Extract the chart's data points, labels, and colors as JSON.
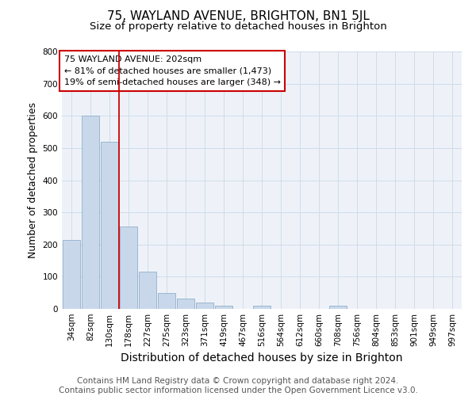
{
  "title": "75, WAYLAND AVENUE, BRIGHTON, BN1 5JL",
  "subtitle": "Size of property relative to detached houses in Brighton",
  "xlabel": "Distribution of detached houses by size in Brighton",
  "ylabel": "Number of detached properties",
  "categories": [
    "34sqm",
    "82sqm",
    "130sqm",
    "178sqm",
    "227sqm",
    "275sqm",
    "323sqm",
    "371sqm",
    "419sqm",
    "467sqm",
    "516sqm",
    "564sqm",
    "612sqm",
    "660sqm",
    "708sqm",
    "756sqm",
    "804sqm",
    "853sqm",
    "901sqm",
    "949sqm",
    "997sqm"
  ],
  "values": [
    215,
    600,
    520,
    255,
    115,
    50,
    33,
    20,
    10,
    0,
    10,
    0,
    0,
    0,
    10,
    0,
    0,
    0,
    0,
    0,
    0
  ],
  "bar_color": "#c8d8ea",
  "bar_edge_color": "#90b0cc",
  "grid_color": "#d0dcea",
  "background_color": "#eef2f8",
  "red_line_x": 2.5,
  "annotation_lines": [
    "75 WAYLAND AVENUE: 202sqm",
    "← 81% of detached houses are smaller (1,473)",
    "19% of semi-detached houses are larger (348) →"
  ],
  "annotation_box_color": "#cc0000",
  "ylim": [
    0,
    800
  ],
  "yticks": [
    0,
    100,
    200,
    300,
    400,
    500,
    600,
    700,
    800
  ],
  "footer_line1": "Contains HM Land Registry data © Crown copyright and database right 2024.",
  "footer_line2": "Contains public sector information licensed under the Open Government Licence v3.0.",
  "title_fontsize": 11,
  "subtitle_fontsize": 9.5,
  "xlabel_fontsize": 10,
  "ylabel_fontsize": 9,
  "tick_fontsize": 7.5,
  "footer_fontsize": 7.5,
  "ann_fontsize": 8
}
